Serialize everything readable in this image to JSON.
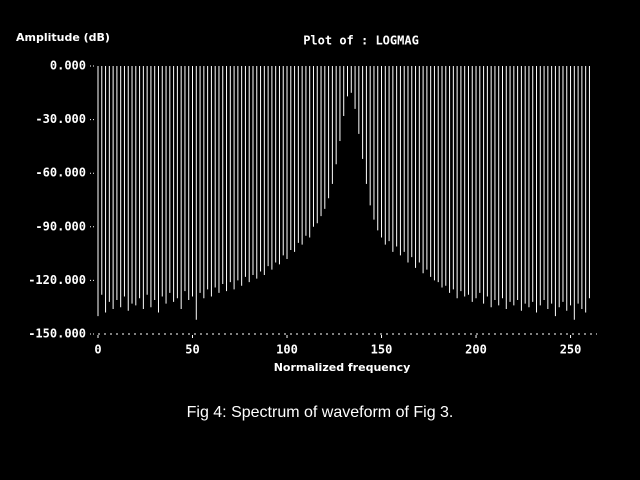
{
  "chart_data": {
    "type": "stem",
    "title": "Plot of :  LOGMAG",
    "y_label": "Amplitude (dB)",
    "x_label": "Normalized frequency",
    "caption": "Fig 4: Spectrum of waveform of Fig 3.",
    "color": "#ffffff",
    "xlim": [
      0,
      264
    ],
    "ylim": [
      -150,
      0
    ],
    "xticks": [
      0,
      50,
      100,
      150,
      200,
      250
    ],
    "yticks": [
      {
        "value": 0,
        "label": "0.000"
      },
      {
        "value": -30,
        "label": "-30.000"
      },
      {
        "value": -60,
        "label": "-60.000"
      },
      {
        "value": -90,
        "label": "-90.000"
      },
      {
        "value": -120,
        "label": "-120.000"
      },
      {
        "value": -150,
        "label": "-150.000"
      }
    ],
    "x": [
      0,
      2,
      4,
      6,
      8,
      10,
      12,
      14,
      16,
      18,
      20,
      22,
      24,
      26,
      28,
      30,
      32,
      34,
      36,
      38,
      40,
      42,
      44,
      46,
      48,
      50,
      52,
      54,
      56,
      58,
      60,
      62,
      64,
      66,
      68,
      70,
      72,
      74,
      76,
      78,
      80,
      82,
      84,
      86,
      88,
      90,
      92,
      94,
      96,
      98,
      100,
      102,
      104,
      106,
      108,
      110,
      112,
      114,
      116,
      118,
      120,
      122,
      124,
      126,
      128,
      130,
      132,
      134,
      136,
      138,
      140,
      142,
      144,
      146,
      148,
      150,
      152,
      154,
      156,
      158,
      160,
      162,
      164,
      166,
      168,
      170,
      172,
      174,
      176,
      178,
      180,
      182,
      184,
      186,
      188,
      190,
      192,
      194,
      196,
      198,
      200,
      202,
      204,
      206,
      208,
      210,
      212,
      214,
      216,
      218,
      220,
      222,
      224,
      226,
      228,
      230,
      232,
      234,
      236,
      238,
      240,
      242,
      244,
      246,
      248,
      250,
      252,
      254,
      256,
      258,
      260
    ],
    "values": [
      -140,
      -128,
      -138,
      -132,
      -136,
      -131,
      -135,
      -129,
      -137,
      -133,
      -134,
      -130,
      -136,
      -128,
      -135,
      -131,
      -138,
      -129,
      -133,
      -127,
      -132,
      -130,
      -136,
      -126,
      -131,
      -129,
      -142,
      -127,
      -130,
      -125,
      -129,
      -124,
      -127,
      -122,
      -126,
      -121,
      -125,
      -120,
      -123,
      -118,
      -121,
      -117,
      -119,
      -115,
      -117,
      -112,
      -114,
      -110,
      -111,
      -106,
      -108,
      -103,
      -104,
      -99,
      -100,
      -95,
      -96,
      -90,
      -88,
      -84,
      -80,
      -74,
      -66,
      -55,
      -42,
      -28,
      -17,
      -15,
      -24,
      -38,
      -52,
      -66,
      -78,
      -86,
      -92,
      -96,
      -100,
      -98,
      -104,
      -101,
      -106,
      -104,
      -110,
      -107,
      -113,
      -110,
      -116,
      -114,
      -118,
      -120,
      -121,
      -124,
      -123,
      -127,
      -125,
      -130,
      -126,
      -129,
      -128,
      -132,
      -130,
      -127,
      -133,
      -129,
      -135,
      -131,
      -134,
      -130,
      -136,
      -132,
      -134,
      -131,
      -137,
      -133,
      -135,
      -132,
      -138,
      -134,
      -131,
      -136,
      -133,
      -140,
      -135,
      -132,
      -137,
      -134,
      -142,
      -133,
      -136,
      -138,
      -130
    ]
  }
}
